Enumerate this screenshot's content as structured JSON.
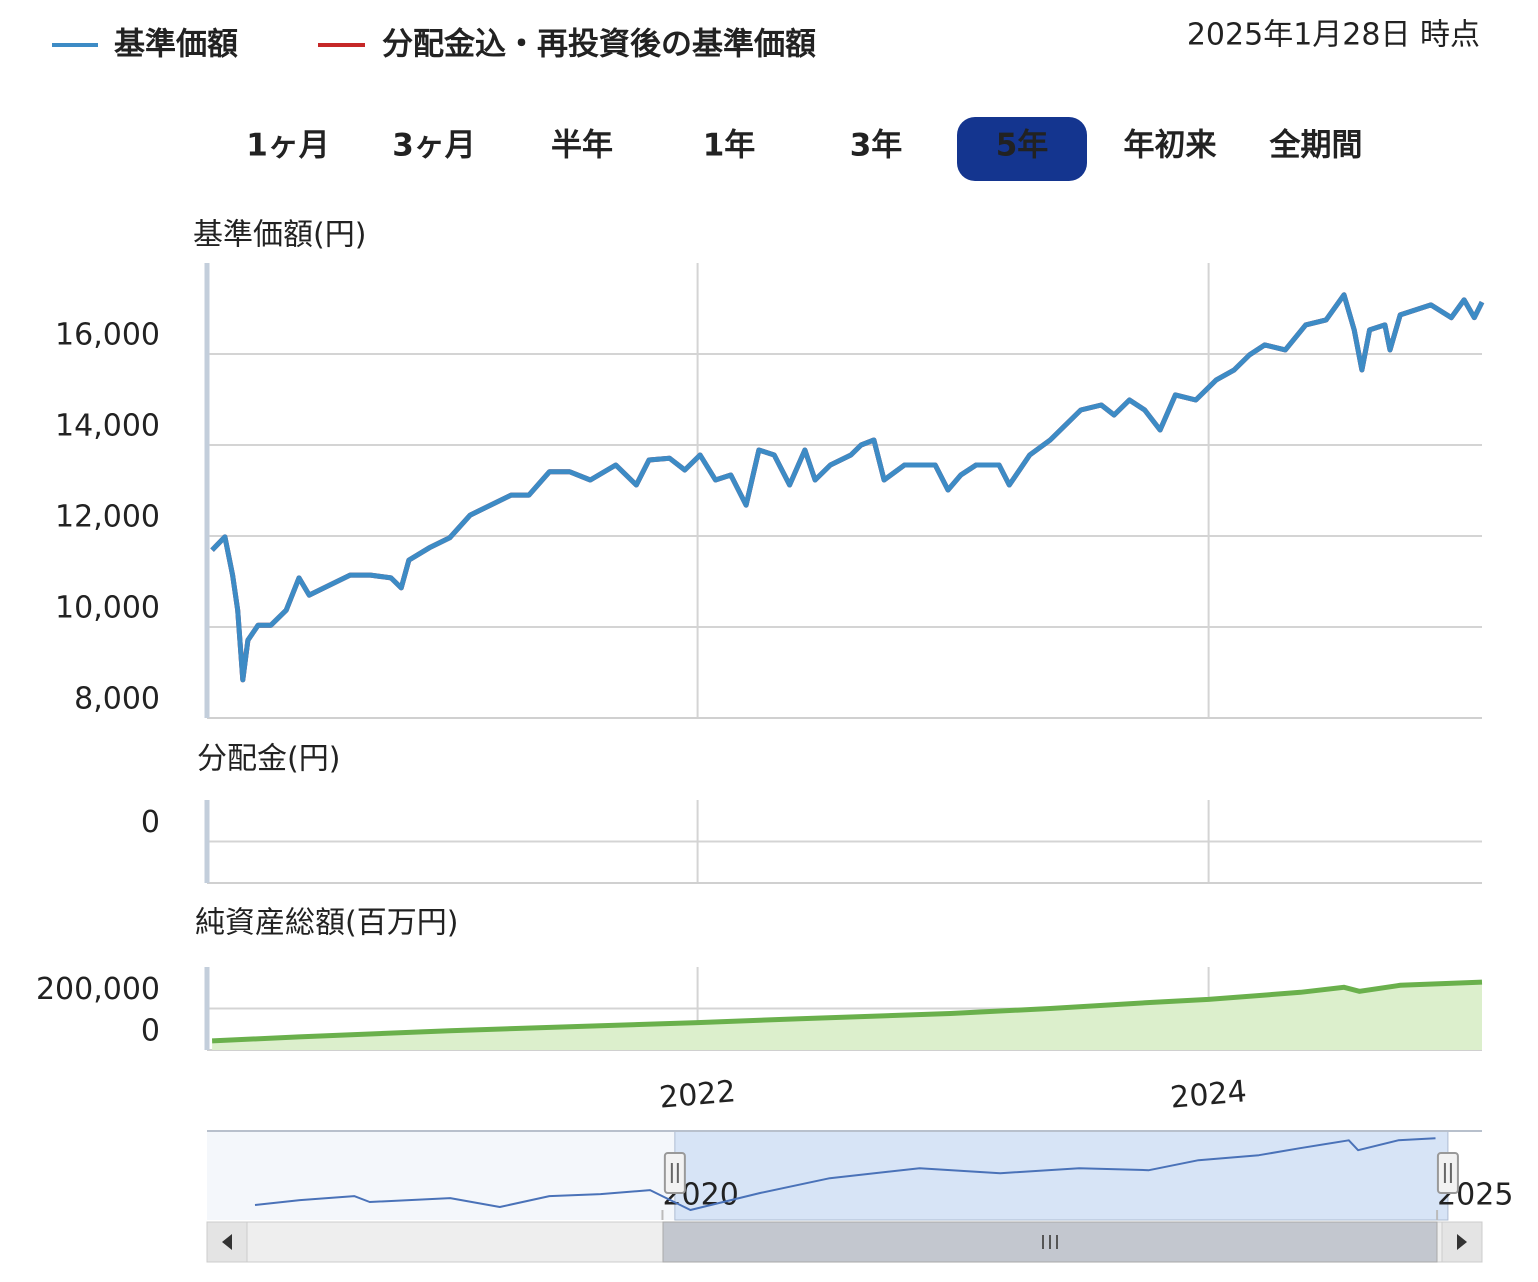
{
  "as_of": "2025年1月28日 時点",
  "periods": [
    {
      "label": "1ヶ月"
    },
    {
      "label": "3ヶ月"
    },
    {
      "label": "半年"
    },
    {
      "label": "1年"
    },
    {
      "label": "3年"
    },
    {
      "label": "5年",
      "selected": true
    },
    {
      "label": "年初来"
    },
    {
      "label": "全期間"
    }
  ],
  "chart_data": [
    {
      "type": "line",
      "title": "基準価額(円)",
      "xlim": [
        2020.08,
        2025.07
      ],
      "xticks": [
        2022,
        2024
      ],
      "ylim": [
        8000,
        18000
      ],
      "yticks": [
        {
          "value": 8000,
          "label": "8,000"
        },
        {
          "value": 10000,
          "label": "10,000"
        },
        {
          "value": 12000,
          "label": "12,000"
        },
        {
          "value": 14000,
          "label": "14,000"
        },
        {
          "value": 16000,
          "label": "16,000"
        }
      ],
      "grid": true,
      "series": [
        {
          "name": "分配金込・再投資後の基準価額",
          "color": "#c62828",
          "x": [
            2020.1,
            2020.15,
            2020.18,
            2020.2,
            2020.22,
            2020.24,
            2020.28,
            2020.33,
            2020.39,
            2020.44,
            2020.48,
            2020.56,
            2020.64,
            2020.72,
            2020.8,
            2020.84,
            2020.87,
            2020.95,
            2021.03,
            2021.11,
            2021.19,
            2021.27,
            2021.34,
            2021.42,
            2021.5,
            2021.58,
            2021.68,
            2021.76,
            2021.81,
            2021.89,
            2021.95,
            2022.01,
            2022.07,
            2022.13,
            2022.19,
            2022.24,
            2022.3,
            2022.36,
            2022.42,
            2022.46,
            2022.52,
            2022.6,
            2022.64,
            2022.69,
            2022.73,
            2022.81,
            2022.93,
            2022.98,
            2023.03,
            2023.09,
            2023.18,
            2023.22,
            2023.3,
            2023.38,
            2023.44,
            2023.5,
            2023.58,
            2023.63,
            2023.69,
            2023.75,
            2023.81,
            2023.87,
            2023.95,
            2024.03,
            2024.1,
            2024.16,
            2024.22,
            2024.3,
            2024.38,
            2024.46,
            2024.53,
            2024.57,
            2024.6,
            2024.63,
            2024.69,
            2024.71,
            2024.75,
            2024.87,
            2024.95,
            2025.0,
            2025.04,
            2025.07
          ],
          "values": [
            11690,
            11980,
            11140,
            10370,
            8840,
            9710,
            10040,
            10040,
            10370,
            11080,
            10700,
            10920,
            11140,
            11140,
            11080,
            10860,
            11470,
            11740,
            11960,
            12460,
            12680,
            12900,
            12900,
            13410,
            13410,
            13230,
            13560,
            13120,
            13670,
            13710,
            13450,
            13780,
            13230,
            13340,
            12680,
            13890,
            13780,
            13120,
            13890,
            13230,
            13560,
            13780,
            14000,
            14110,
            13230,
            13560,
            13560,
            13010,
            13340,
            13560,
            13560,
            13120,
            13780,
            14110,
            14440,
            14770,
            14880,
            14660,
            14990,
            14770,
            14330,
            15100,
            14990,
            15430,
            15650,
            15980,
            16200,
            16090,
            16640,
            16750,
            17300,
            16530,
            15650,
            16530,
            16640,
            16090,
            16860,
            17080,
            16800,
            17190,
            16800,
            17140
          ]
        },
        {
          "name": "基準価額",
          "color": "#3d8bc5",
          "x": [
            2020.1,
            2020.15,
            2020.18,
            2020.2,
            2020.22,
            2020.24,
            2020.28,
            2020.33,
            2020.39,
            2020.44,
            2020.48,
            2020.56,
            2020.64,
            2020.72,
            2020.8,
            2020.84,
            2020.87,
            2020.95,
            2021.03,
            2021.11,
            2021.19,
            2021.27,
            2021.34,
            2021.42,
            2021.5,
            2021.58,
            2021.68,
            2021.76,
            2021.81,
            2021.89,
            2021.95,
            2022.01,
            2022.07,
            2022.13,
            2022.19,
            2022.24,
            2022.3,
            2022.36,
            2022.42,
            2022.46,
            2022.52,
            2022.6,
            2022.64,
            2022.69,
            2022.73,
            2022.81,
            2022.93,
            2022.98,
            2023.03,
            2023.09,
            2023.18,
            2023.22,
            2023.3,
            2023.38,
            2023.44,
            2023.5,
            2023.58,
            2023.63,
            2023.69,
            2023.75,
            2023.81,
            2023.87,
            2023.95,
            2024.03,
            2024.1,
            2024.16,
            2024.22,
            2024.3,
            2024.38,
            2024.46,
            2024.53,
            2024.57,
            2024.6,
            2024.63,
            2024.69,
            2024.71,
            2024.75,
            2024.87,
            2024.95,
            2025.0,
            2025.04,
            2025.07
          ],
          "values": [
            11690,
            11980,
            11140,
            10370,
            8840,
            9710,
            10040,
            10040,
            10370,
            11080,
            10700,
            10920,
            11140,
            11140,
            11080,
            10860,
            11470,
            11740,
            11960,
            12460,
            12680,
            12900,
            12900,
            13410,
            13410,
            13230,
            13560,
            13120,
            13670,
            13710,
            13450,
            13780,
            13230,
            13340,
            12680,
            13890,
            13780,
            13120,
            13890,
            13230,
            13560,
            13780,
            14000,
            14110,
            13230,
            13560,
            13560,
            13010,
            13340,
            13560,
            13560,
            13120,
            13780,
            14110,
            14440,
            14770,
            14880,
            14660,
            14990,
            14770,
            14330,
            15100,
            14990,
            15430,
            15650,
            15980,
            16200,
            16090,
            16640,
            16750,
            17300,
            16530,
            15650,
            16530,
            16640,
            16090,
            16860,
            17080,
            16800,
            17190,
            16800,
            17140
          ]
        }
      ]
    },
    {
      "type": "bar",
      "title": "分配金(円)",
      "xlim": [
        2020.08,
        2025.07
      ],
      "xticks": [
        2022,
        2024
      ],
      "ylim": [
        -1,
        1
      ],
      "yticks": [
        0
      ],
      "grid": true
    },
    {
      "type": "area",
      "title": "純資産総額(百万円)",
      "xlim": [
        2020.08,
        2025.07
      ],
      "xticks": [
        2022,
        2024
      ],
      "ylim": [
        0,
        400000
      ],
      "yticks": [
        0,
        {
          "value": 200000,
          "label": "200,000"
        }
      ],
      "grid": true,
      "series": [
        {
          "color": "#6ab04c",
          "x": [
            2020.1,
            2020.44,
            2021.03,
            2021.62,
            2022.0,
            2022.4,
            2022.99,
            2023.38,
            2023.77,
            2024.0,
            2024.36,
            2024.53,
            2024.59,
            2024.75,
            2025.07
          ],
          "values": [
            44000,
            63000,
            93000,
            117000,
            132000,
            151000,
            176000,
            200000,
            229000,
            244000,
            278000,
            302000,
            283000,
            312000,
            327000
          ]
        }
      ]
    },
    {
      "type": "line",
      "xlim": [
        2017.06,
        2025.29
      ],
      "xticks": [
        2020,
        2025
      ],
      "ylim": [
        8000,
        18000
      ],
      "series": [
        {
          "color": "#4a72b8",
          "x": [
            2017.37,
            2017.66,
            2018.01,
            2018.11,
            2018.63,
            2018.95,
            2019.27,
            2019.6,
            2019.92,
            2020.18,
            2020.63,
            2021.08,
            2021.66,
            2022.18,
            2022.69,
            2023.14,
            2023.46,
            2023.85,
            2024.11,
            2024.43,
            2024.49,
            2024.75,
            2024.99
          ],
          "values": [
            9680,
            10240,
            10690,
            10020,
            10460,
            9460,
            10690,
            10910,
            11360,
            9120,
            11030,
            12700,
            13820,
            13260,
            13820,
            13600,
            14720,
            15280,
            16060,
            16960,
            15840,
            16960,
            17180
          ]
        }
      ]
    }
  ]
}
